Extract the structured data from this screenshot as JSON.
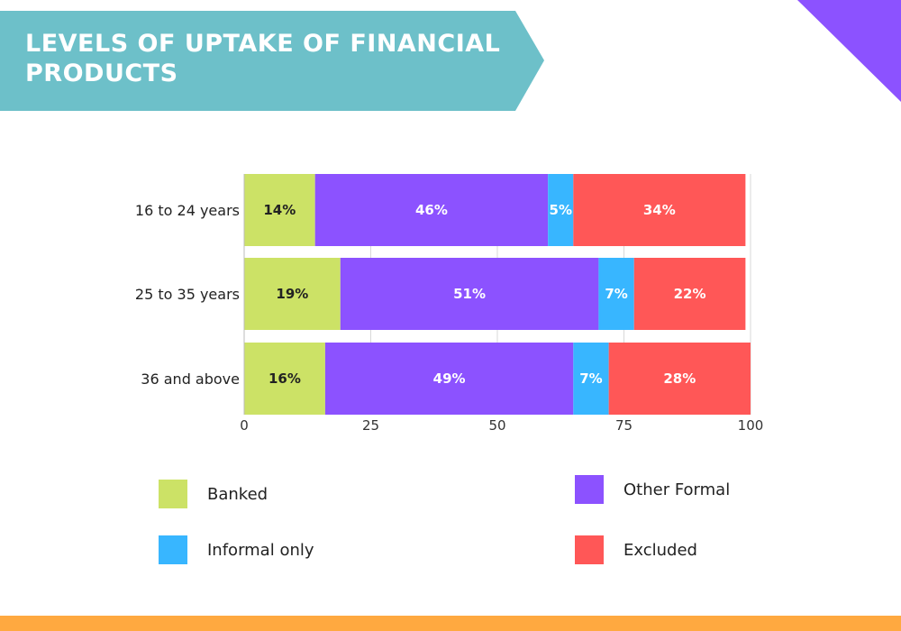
{
  "title": "LEVELS OF UPTAKE OF FINANCIAL PRODUCTS",
  "colors": {
    "banner": "#6DC0C9",
    "corner_triangle": "#8C52FF",
    "footer": "#FFA940",
    "banked": "#CCE266",
    "other_formal": "#8C52FF",
    "informal_only": "#38B6FF",
    "excluded": "#FF5757"
  },
  "legend": {
    "banked": "Banked",
    "other_formal": "Other Formal",
    "informal_only": "Informal only",
    "excluded": "Excluded"
  },
  "chart_data": {
    "type": "bar",
    "orientation": "horizontal",
    "stacked": true,
    "categories": [
      "16 to 24 years",
      "25 to 35 years",
      "36 and above"
    ],
    "series": [
      {
        "name": "Banked",
        "values": [
          14,
          19,
          16
        ],
        "labels": [
          "14%",
          "19%",
          "16%"
        ]
      },
      {
        "name": "Other Formal",
        "values": [
          46,
          51,
          49
        ],
        "labels": [
          "46%",
          "51%",
          "49%"
        ]
      },
      {
        "name": "Informal only",
        "values": [
          5,
          7,
          7
        ],
        "labels": [
          "5%",
          "7%",
          "7%"
        ]
      },
      {
        "name": "Excluded",
        "values": [
          34,
          22,
          28
        ],
        "labels": [
          "34%",
          "22%",
          "28%"
        ]
      }
    ],
    "x_ticks": [
      "0",
      "25",
      "50",
      "75",
      "100"
    ],
    "xlim": [
      0,
      100
    ],
    "grid": "vertical",
    "legend_position": "bottom"
  }
}
